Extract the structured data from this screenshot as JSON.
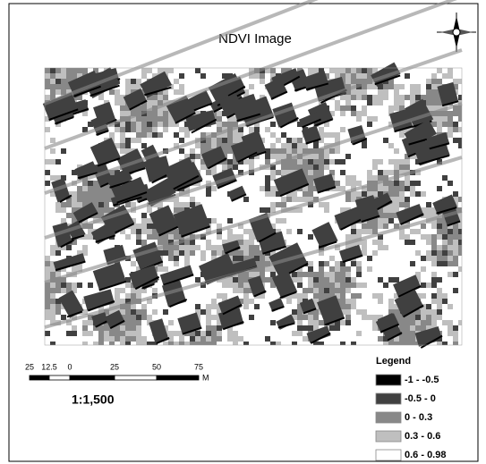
{
  "title": "NDVI Image",
  "legend": {
    "title": "Legend",
    "items": [
      {
        "label": "-1 - -0.5",
        "color": "#000000"
      },
      {
        "label": "-0.5 - 0",
        "color": "#404040"
      },
      {
        "label": "0 - 0.3",
        "color": "#888888"
      },
      {
        "label": "0.3 - 0.6",
        "color": "#bfbfbf"
      },
      {
        "label": "0.6 - 0.98",
        "color": "#ffffff"
      }
    ]
  },
  "scale_bar": {
    "labels": [
      "25",
      "12.5",
      "0",
      "25",
      "50",
      "75"
    ],
    "unit": "M",
    "ratio": "1:1,500"
  }
}
